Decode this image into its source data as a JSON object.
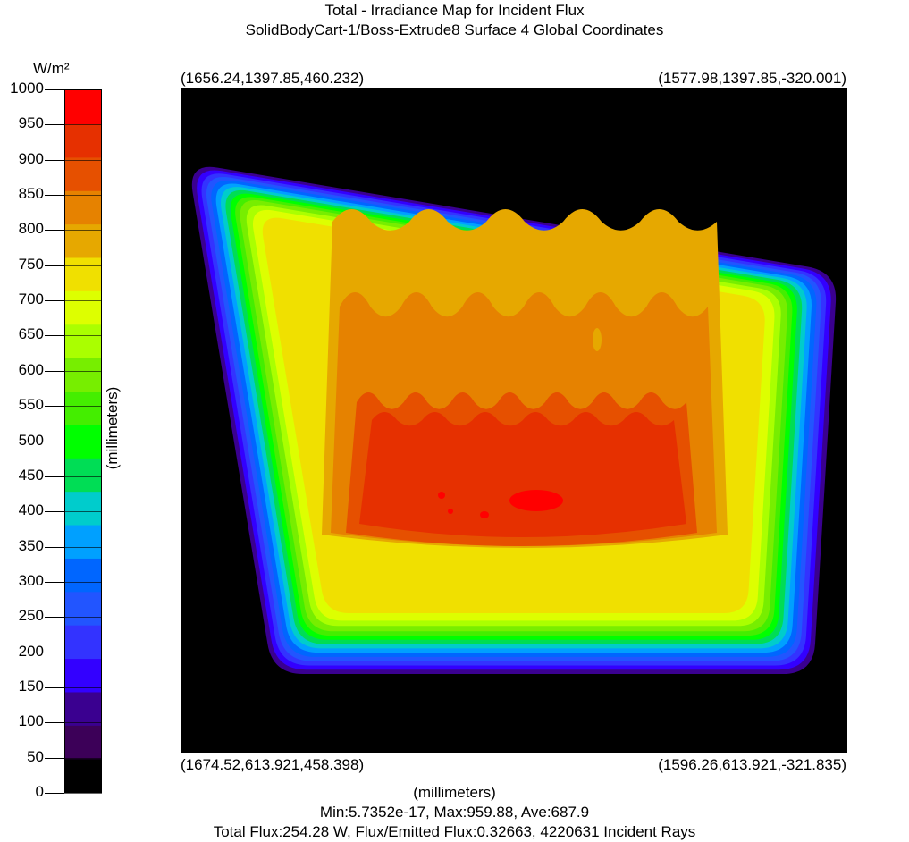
{
  "header": {
    "title": "Total - Irradiance Map for Incident Flux",
    "subtitle": "SolidBodyCart-1/Boss-Extrude8 Surface 4    Global Coordinates"
  },
  "colorbar": {
    "unit": "W/m²",
    "min": 0,
    "max": 1000,
    "ticks": [
      "1000",
      "950",
      "900",
      "850",
      "800",
      "750",
      "700",
      "650",
      "600",
      "550",
      "500",
      "450",
      "400",
      "350",
      "300",
      "250",
      "200",
      "150",
      "100",
      "50",
      "0"
    ],
    "bands": [
      "#000000",
      "#3c0058",
      "#3a0090",
      "#3300ff",
      "#3333ff",
      "#2255ff",
      "#0066ff",
      "#00a0ff",
      "#00cccc",
      "#00dd55",
      "#00ff00",
      "#44ee00",
      "#77ee00",
      "#aaff00",
      "#ddff00",
      "#f0e000",
      "#e6a800",
      "#e68200",
      "#e65000",
      "#e63000",
      "#ff0000"
    ]
  },
  "corners": {
    "top_left": "(1656.24,1397.85,460.232)",
    "top_right": "(1577.98,1397.85,-320.001)",
    "bottom_left": "(1674.52,613.921,458.398)",
    "bottom_right": "(1596.26,613.921,-321.835)"
  },
  "axes": {
    "xlabel": "(millimeters)",
    "ylabel": "(millimeters)"
  },
  "footer": {
    "stats": "Min:5.7352e-17, Max:959.88, Ave:687.9",
    "flux": "Total Flux:254.28 W, Flux/Emitted Flux:0.32663, 4220631 Incident Rays"
  },
  "chart_data": {
    "type": "heatmap",
    "title": "Total - Irradiance Map for Incident Flux",
    "subtitle": "SolidBodyCart-1/Boss-Extrude8 Surface 4    Global Coordinates",
    "xlabel": "(millimeters)",
    "ylabel": "(millimeters)",
    "colorbar_unit": "W/m²",
    "colorbar_range": [
      0,
      1000
    ],
    "colorbar_step": 50,
    "corner_coordinates": {
      "top_left": [
        1656.24,
        1397.85,
        460.232
      ],
      "top_right": [
        1577.98,
        1397.85,
        -320.001
      ],
      "bottom_left": [
        1674.52,
        613.921,
        458.398
      ],
      "bottom_right": [
        1596.26,
        613.921,
        -321.835
      ]
    },
    "min": 5.7352e-17,
    "max": 959.88,
    "average": 687.9,
    "total_flux_W": 254.28,
    "flux_over_emitted_flux": 0.32663,
    "incident_rays": 4220631
  }
}
